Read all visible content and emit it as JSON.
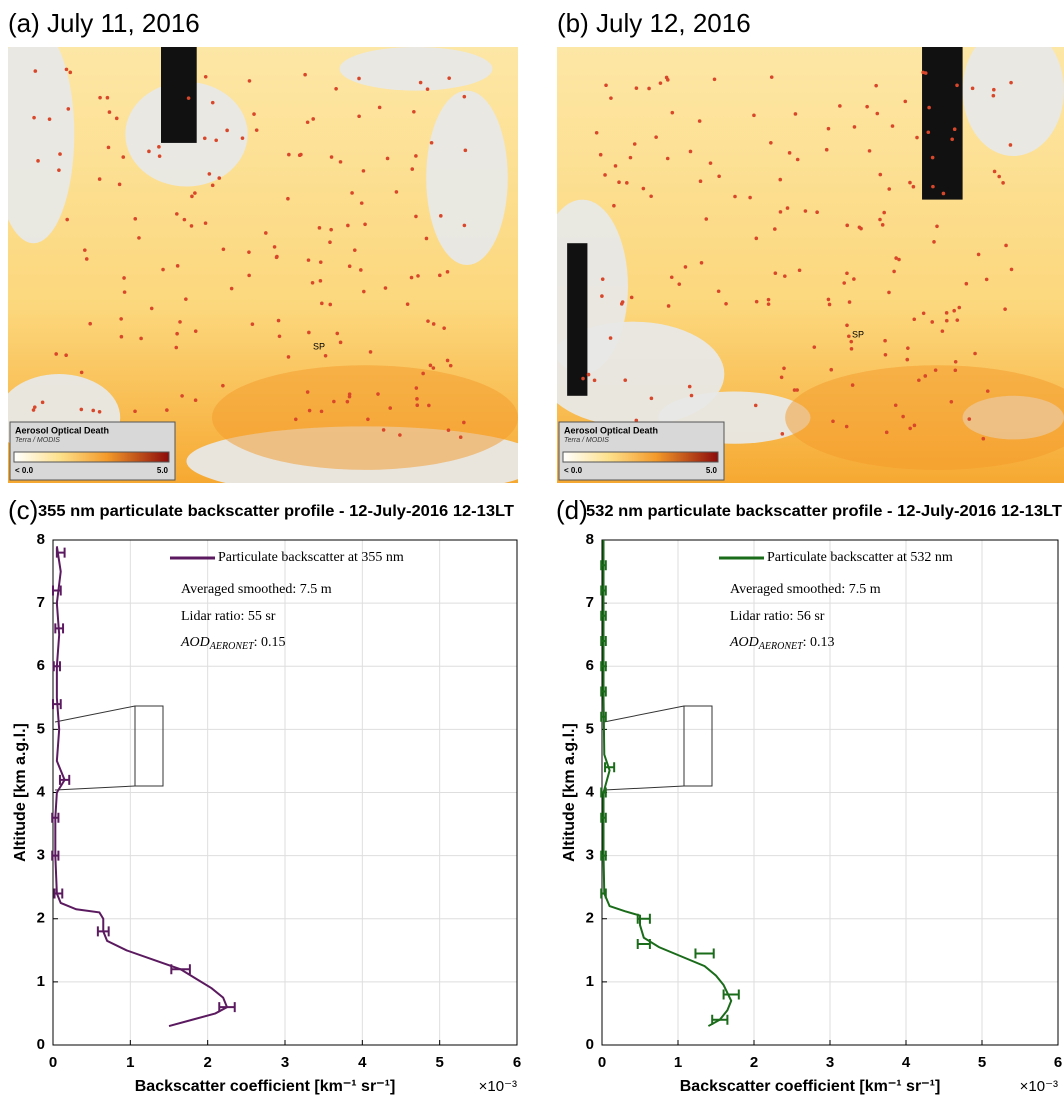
{
  "maps": [
    {
      "label": "(a) July 11, 2016",
      "legend_title": "Aerosol Optical Death",
      "legend_source": "Terra / MODIS",
      "legend_min": "< 0.0",
      "legend_max": "5.0",
      "site": "SP"
    },
    {
      "label": "(b) July 12, 2016",
      "legend_title": "Aerosol Optical Death",
      "legend_source": "Terra / MODIS",
      "legend_min": "< 0.0",
      "legend_max": "5.0",
      "site": "SP"
    }
  ],
  "chart_data": [
    {
      "type": "line",
      "panel_label": "(c)",
      "title": "355 nm particulate backscatter profile - 12-July-2016 12-13LT",
      "xlabel": "Backscatter coefficient [km⁻¹ sr⁻¹]",
      "x_multiplier": "×10⁻³",
      "ylabel": "Altitude [km a.g.l.]",
      "xlim": [
        0,
        6
      ],
      "ylim": [
        0,
        8
      ],
      "xticks": [
        0,
        1,
        2,
        3,
        4,
        5,
        6
      ],
      "yticks": [
        0,
        1,
        2,
        3,
        4,
        5,
        6,
        7,
        8
      ],
      "grid": true,
      "legend": "upper right",
      "annotations": [
        "Averaged smoothed: 7.5 m",
        "Lidar ratio: 55 sr"
      ],
      "aod": {
        "prefix": "AOD",
        "subscript": "AERONET",
        "text": ": 0.15"
      },
      "series": [
        {
          "name": "Particulate backscatter at 355 nm",
          "color": "#5b1a5f",
          "x": [
            1.5,
            1.8,
            2.1,
            2.25,
            2.2,
            2.05,
            1.85,
            1.65,
            1.3,
            0.95,
            0.7,
            0.65,
            0.65,
            0.6,
            0.3,
            0.1,
            0.05,
            0.03,
            0.03,
            0.05,
            0.15,
            0.05,
            0.08,
            0.05,
            0.05,
            0.08,
            0.05,
            0.1,
            0.05
          ],
          "values": [
            0.3,
            0.4,
            0.5,
            0.6,
            0.75,
            0.9,
            1.05,
            1.2,
            1.35,
            1.5,
            1.65,
            1.8,
            2.0,
            2.1,
            2.15,
            2.25,
            2.4,
            3.0,
            3.6,
            4.0,
            4.2,
            4.5,
            5.0,
            5.5,
            6.0,
            6.5,
            7.0,
            7.5,
            7.9
          ],
          "error_bars": {
            "x": [
              2.25,
              1.65,
              0.65,
              0.07,
              0.03,
              0.03,
              0.15,
              0.05,
              0.05,
              0.08,
              0.05,
              0.1
            ],
            "y": [
              0.6,
              1.2,
              1.8,
              2.4,
              3.0,
              3.6,
              4.2,
              5.4,
              6.0,
              6.6,
              7.2,
              7.8
            ],
            "err": [
              0.1,
              0.12,
              0.07,
              0.05,
              0.04,
              0.04,
              0.06,
              0.05,
              0.04,
              0.05,
              0.05,
              0.05
            ]
          }
        }
      ]
    },
    {
      "type": "line",
      "panel_label": "(d)",
      "title": "532 nm particulate backscatter profile - 12-July-2016 12-13LT",
      "xlabel": "Backscatter coefficient [km⁻¹ sr⁻¹]",
      "x_multiplier": "×10⁻³",
      "ylabel": "Altitude [km a.g.l.]",
      "xlim": [
        0,
        6
      ],
      "ylim": [
        0,
        8
      ],
      "xticks": [
        0,
        1,
        2,
        3,
        4,
        5,
        6
      ],
      "yticks": [
        0,
        1,
        2,
        3,
        4,
        5,
        6,
        7,
        8
      ],
      "grid": true,
      "legend": "upper right",
      "annotations": [
        "Averaged smoothed: 7.5 m",
        "Lidar ratio: 56 sr"
      ],
      "aod": {
        "prefix": "AOD",
        "subscript": "AERONET",
        "text": ": 0.13"
      },
      "series": [
        {
          "name": "Particulate backscatter at 532 nm",
          "color": "#1a6b1a",
          "x": [
            1.4,
            1.55,
            1.65,
            1.7,
            1.6,
            1.5,
            1.35,
            1.05,
            0.75,
            0.55,
            0.5,
            0.5,
            0.3,
            0.1,
            0.03,
            0.02,
            0.02,
            0.1,
            0.03,
            0.02,
            0.02,
            0.02,
            0.02
          ],
          "values": [
            0.3,
            0.4,
            0.55,
            0.7,
            0.95,
            1.1,
            1.25,
            1.4,
            1.55,
            1.7,
            1.9,
            2.05,
            2.12,
            2.2,
            2.4,
            3.0,
            4.0,
            4.35,
            4.6,
            5.5,
            6.5,
            7.5,
            8.0
          ],
          "error_bars": {
            "x": [
              1.55,
              1.7,
              1.35,
              0.55,
              0.55,
              0.02,
              0.02,
              0.02,
              0.02,
              0.1,
              0.02,
              0.02,
              0.02,
              0.02,
              0.02,
              0.02,
              0.02
            ],
            "y": [
              0.4,
              0.8,
              1.45,
              1.6,
              2.0,
              2.4,
              3.0,
              3.6,
              4.0,
              4.4,
              5.2,
              5.6,
              6.0,
              6.4,
              6.8,
              7.2,
              7.6
            ],
            "err": [
              0.1,
              0.1,
              0.12,
              0.08,
              0.08,
              0.03,
              0.03,
              0.03,
              0.03,
              0.06,
              0.03,
              0.03,
              0.03,
              0.03,
              0.03,
              0.03,
              0.03
            ]
          }
        }
      ]
    }
  ]
}
